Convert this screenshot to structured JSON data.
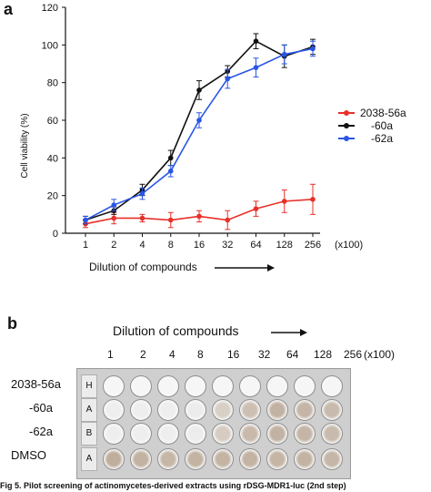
{
  "panel_a_label": "a",
  "panel_b_label": "b",
  "chart_data": {
    "type": "line",
    "ylabel": "Cell viability (%)",
    "xlabel": "Dilution of compounds",
    "x_unit_label": "(x100)",
    "categories": [
      "1",
      "2",
      "4",
      "8",
      "16",
      "32",
      "64",
      "128",
      "256"
    ],
    "yticks": [
      "0",
      "20",
      "40",
      "60",
      "80",
      "100",
      "120"
    ],
    "ylim": [
      0,
      120
    ],
    "series": [
      {
        "name": "2038-56a",
        "color": "#e8302a",
        "values": [
          5,
          8,
          8,
          7,
          9,
          7,
          13,
          17,
          18
        ],
        "errors": [
          2,
          3,
          2,
          4,
          3,
          5,
          4,
          6,
          8
        ]
      },
      {
        "name": "-60a",
        "color": "#111111",
        "values": [
          7,
          12,
          23,
          40,
          76,
          86,
          102,
          94,
          99
        ],
        "errors": [
          2,
          2,
          3,
          4,
          5,
          3,
          4,
          6,
          4
        ]
      },
      {
        "name": "-62a",
        "color": "#2a56e6",
        "values": [
          7,
          15,
          21,
          33,
          60,
          82,
          88,
          95,
          98
        ],
        "errors": [
          2,
          3,
          3,
          3,
          4,
          5,
          5,
          5,
          4
        ]
      }
    ],
    "legend_position": "right",
    "grid": false
  },
  "panel_b": {
    "title": "Dilution of compounds",
    "columns": [
      "1",
      "2",
      "4",
      "8",
      "16",
      "32",
      "64",
      "128",
      "256"
    ],
    "unit": "(x100)",
    "rows": [
      "2038-56a",
      "-60a",
      "-62a",
      "DMSO"
    ],
    "plate_row_letters": [
      "H",
      "A",
      "B",
      "A"
    ]
  },
  "caption": "Fig 5. Pilot screening of actinomycetes-derived extracts using rDSG-MDR1-luc (2nd step)"
}
